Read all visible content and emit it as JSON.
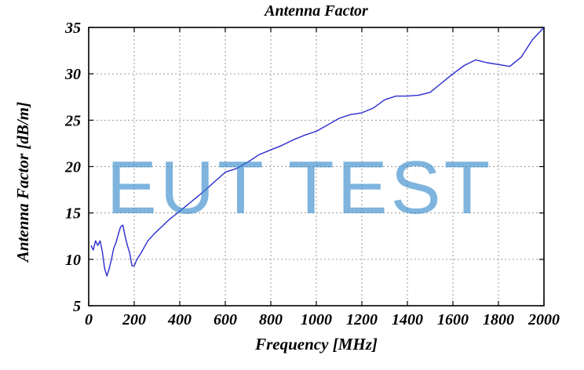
{
  "chart_data": {
    "type": "line",
    "title": "Antenna Factor",
    "xlabel": "Frequency [MHz]",
    "ylabel": "Antenna Factor [dB/m]",
    "xlim": [
      0,
      2000
    ],
    "ylim": [
      5,
      35
    ],
    "xticks": [
      0,
      200,
      400,
      600,
      800,
      1000,
      1200,
      1400,
      1600,
      1800,
      2000
    ],
    "yticks": [
      5,
      10,
      15,
      20,
      25,
      30,
      35
    ],
    "grid": true,
    "line_color": "#2a2ad0",
    "series": [
      {
        "x": [
          10,
          20,
          30,
          40,
          50,
          60,
          70,
          80,
          90,
          100,
          110,
          120,
          130,
          140,
          150,
          160,
          170,
          180,
          190,
          200,
          210,
          230,
          260,
          290,
          320,
          350,
          380,
          400,
          450,
          500,
          550,
          600,
          650,
          700,
          750,
          800,
          850,
          900,
          950,
          1000,
          1050,
          1100,
          1150,
          1200,
          1250,
          1300,
          1350,
          1400,
          1450,
          1500,
          1550,
          1600,
          1650,
          1700,
          1750,
          1800,
          1850,
          1900,
          1950,
          2000
        ],
        "y": [
          11.5,
          11.0,
          12.0,
          11.5,
          12.0,
          10.8,
          9.0,
          8.2,
          9.0,
          10.0,
          11.2,
          11.8,
          12.7,
          13.5,
          13.7,
          12.5,
          11.5,
          10.7,
          9.3,
          9.3,
          9.9,
          10.7,
          12.0,
          12.8,
          13.5,
          14.2,
          14.8,
          15.2,
          16.2,
          17.2,
          18.3,
          19.4,
          19.8,
          20.5,
          21.3,
          21.8,
          22.3,
          22.9,
          23.4,
          23.8,
          24.5,
          25.2,
          25.6,
          25.8,
          26.3,
          27.2,
          27.6,
          27.6,
          27.7,
          28.0,
          29.0,
          30.0,
          30.9,
          31.5,
          31.2,
          31.0,
          30.8,
          31.8,
          33.7,
          35.0
        ]
      }
    ]
  },
  "watermark": {
    "text": "EUT TEST"
  }
}
